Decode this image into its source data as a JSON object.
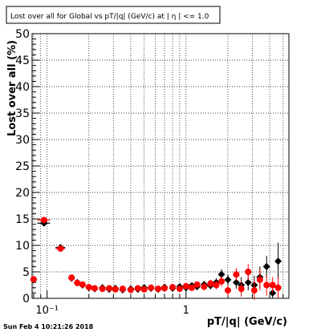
{
  "chart_data": {
    "type": "scatter",
    "title": "Lost over all for Global vs pT/|q| (GeV/c) at |  η | <= 1.0",
    "xlabel": "pT/|q| (GeV/c)",
    "ylabel": "Lost over all (%)",
    "x_scale": "log",
    "xlim": [
      0.078,
      5.5
    ],
    "ylim": [
      0,
      50
    ],
    "grid": true,
    "legend": "none",
    "y_ticks": [
      0,
      5,
      10,
      15,
      20,
      25,
      30,
      35,
      40,
      45,
      50
    ],
    "y_tick_labels": [
      "0",
      "5",
      "10",
      "15",
      "20",
      "25",
      "30",
      "35",
      "40",
      "45",
      "50"
    ],
    "x_tick_labels": [
      {
        "x": 0.1,
        "label": "10⁻¹"
      },
      {
        "x": 1,
        "label": "1"
      }
    ],
    "series": [
      {
        "color": "#000000",
        "marker": "diamond",
        "points": [
          {
            "x": 0.08,
            "y": 3.5,
            "xerr": 0.003,
            "yerr": 0.3
          },
          {
            "x": 0.095,
            "y": 14.2,
            "xerr": 0.01,
            "yerr": 0.4
          },
          {
            "x": 0.125,
            "y": 9.6,
            "xerr": 0.01,
            "yerr": 0.4
          },
          {
            "x": 0.15,
            "y": 3.8,
            "yerr": 0.3
          },
          {
            "x": 0.165,
            "y": 3.0,
            "yerr": 0.3
          },
          {
            "x": 0.18,
            "y": 2.5,
            "yerr": 0.3
          },
          {
            "x": 0.2,
            "y": 2.0,
            "yerr": 0.3
          },
          {
            "x": 0.22,
            "y": 1.8,
            "yerr": 0.3
          },
          {
            "x": 0.25,
            "y": 2.0,
            "yerr": 0.3
          },
          {
            "x": 0.28,
            "y": 1.7,
            "yerr": 0.3
          },
          {
            "x": 0.31,
            "y": 1.9,
            "yerr": 0.3
          },
          {
            "x": 0.35,
            "y": 1.6,
            "yerr": 0.3
          },
          {
            "x": 0.4,
            "y": 1.8,
            "yerr": 0.4
          },
          {
            "x": 0.45,
            "y": 1.7,
            "yerr": 0.4
          },
          {
            "x": 0.5,
            "y": 2.0,
            "yerr": 0.4
          },
          {
            "x": 0.56,
            "y": 1.9,
            "yerr": 0.4
          },
          {
            "x": 0.63,
            "y": 1.7,
            "yerr": 0.4
          },
          {
            "x": 0.7,
            "y": 2.1,
            "yerr": 0.5
          },
          {
            "x": 0.8,
            "y": 1.9,
            "yerr": 0.5
          },
          {
            "x": 0.9,
            "y": 2.2,
            "yerr": 0.5
          },
          {
            "x": 1.0,
            "y": 2.0,
            "yerr": 0.5
          },
          {
            "x": 1.1,
            "y": 2.4,
            "yerr": 0.6
          },
          {
            "x": 1.2,
            "y": 2.2,
            "yerr": 0.6
          },
          {
            "x": 1.35,
            "y": 2.6,
            "yerr": 0.7
          },
          {
            "x": 1.5,
            "y": 2.4,
            "yerr": 0.7
          },
          {
            "x": 1.65,
            "y": 3.0,
            "yerr": 0.8
          },
          {
            "x": 1.8,
            "y": 4.5,
            "yerr": 1.0
          },
          {
            "x": 2.0,
            "y": 3.5,
            "yerr": 1.0
          },
          {
            "x": 2.3,
            "y": 3.0,
            "yerr": 1.2
          },
          {
            "x": 2.5,
            "y": 2.5,
            "yerr": 1.5
          },
          {
            "x": 2.8,
            "y": 3.0,
            "yerr": 1.5
          },
          {
            "x": 3.1,
            "y": 2.5,
            "yerr": 1.8
          },
          {
            "x": 3.4,
            "y": 4.0,
            "yerr": 2.0
          },
          {
            "x": 3.8,
            "y": 6.0,
            "yerr": 2.0
          },
          {
            "x": 4.2,
            "y": 1.0,
            "yerr": 1.0
          },
          {
            "x": 4.6,
            "y": 7.0,
            "yerr": 3.5
          }
        ]
      },
      {
        "color": "#ff0000",
        "marker": "circle",
        "points": [
          {
            "x": 0.08,
            "y": 3.6,
            "xerr": 0.003,
            "yerr": 0.3
          },
          {
            "x": 0.095,
            "y": 14.8,
            "xerr": 0.01,
            "yerr": 0.4
          },
          {
            "x": 0.125,
            "y": 9.4,
            "xerr": 0.01,
            "yerr": 0.4
          },
          {
            "x": 0.15,
            "y": 3.9,
            "yerr": 0.3
          },
          {
            "x": 0.165,
            "y": 2.9,
            "yerr": 0.3
          },
          {
            "x": 0.18,
            "y": 2.6,
            "yerr": 0.3
          },
          {
            "x": 0.2,
            "y": 2.1,
            "yerr": 0.3
          },
          {
            "x": 0.22,
            "y": 1.9,
            "yerr": 0.3
          },
          {
            "x": 0.25,
            "y": 1.8,
            "yerr": 0.3
          },
          {
            "x": 0.28,
            "y": 1.9,
            "yerr": 0.3
          },
          {
            "x": 0.31,
            "y": 1.7,
            "yerr": 0.3
          },
          {
            "x": 0.35,
            "y": 1.8,
            "yerr": 0.3
          },
          {
            "x": 0.4,
            "y": 1.6,
            "yerr": 0.4
          },
          {
            "x": 0.45,
            "y": 1.9,
            "yerr": 0.4
          },
          {
            "x": 0.5,
            "y": 1.7,
            "yerr": 0.4
          },
          {
            "x": 0.56,
            "y": 2.0,
            "yerr": 0.4
          },
          {
            "x": 0.63,
            "y": 1.8,
            "yerr": 0.4
          },
          {
            "x": 0.7,
            "y": 1.9,
            "yerr": 0.5
          },
          {
            "x": 0.8,
            "y": 2.1,
            "yerr": 0.5
          },
          {
            "x": 0.9,
            "y": 1.8,
            "yerr": 0.5
          },
          {
            "x": 1.0,
            "y": 2.3,
            "yerr": 0.5
          },
          {
            "x": 1.1,
            "y": 2.0,
            "yerr": 0.6
          },
          {
            "x": 1.2,
            "y": 2.6,
            "yerr": 0.6
          },
          {
            "x": 1.35,
            "y": 2.2,
            "yerr": 0.7
          },
          {
            "x": 1.5,
            "y": 2.8,
            "yerr": 0.7
          },
          {
            "x": 1.65,
            "y": 2.5,
            "yerr": 0.8
          },
          {
            "x": 1.8,
            "y": 3.2,
            "yerr": 1.0
          },
          {
            "x": 2.0,
            "y": 1.5,
            "yerr": 1.0
          },
          {
            "x": 2.3,
            "y": 4.5,
            "yerr": 1.2
          },
          {
            "x": 2.5,
            "y": 1.8,
            "yerr": 1.5
          },
          {
            "x": 2.8,
            "y": 5.0,
            "yerr": 1.5
          },
          {
            "x": 3.1,
            "y": 1.5,
            "yerr": 1.8
          },
          {
            "x": 3.4,
            "y": 3.5,
            "yerr": 2.0
          },
          {
            "x": 3.8,
            "y": 2.5,
            "yerr": 2.0
          },
          {
            "x": 4.2,
            "y": 2.5,
            "yerr": 1.5
          },
          {
            "x": 4.6,
            "y": 2.0,
            "yerr": 2.0
          }
        ]
      }
    ]
  },
  "footer": {
    "timestamp": "Sun Feb  4 10:21:26 2018"
  }
}
